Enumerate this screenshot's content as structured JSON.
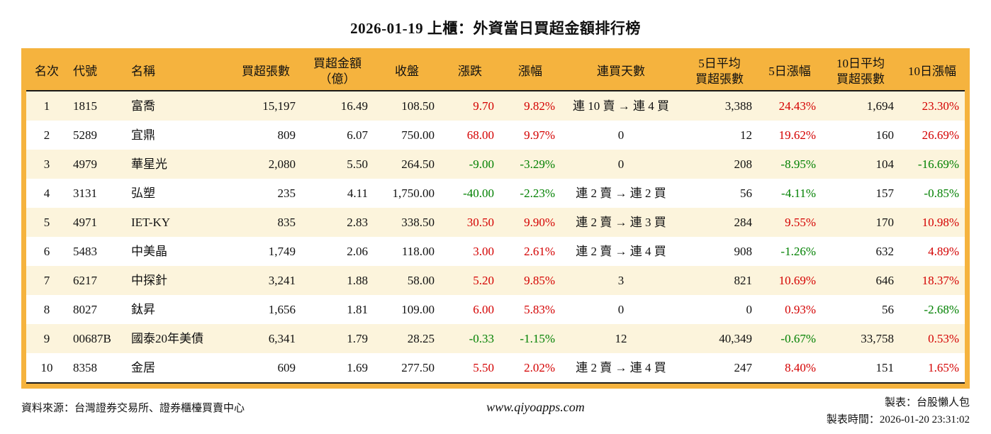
{
  "title": "2026-01-19 上櫃：外資當日買超金額排行榜",
  "colors": {
    "accent": "#F5B33E",
    "row_alt_bg": "#FCF4DC",
    "up_red": "#D40000",
    "down_green": "#008000"
  },
  "table": {
    "headers": [
      "名次",
      "代號",
      "名稱",
      "買超張數",
      "買超金額\n（億）",
      "收盤",
      "漲跌",
      "漲幅",
      "連買天數",
      "5日平均\n買超張數",
      "5日漲幅",
      "10日平均\n買超張數",
      "10日漲幅"
    ],
    "header_align": [
      "center",
      "left",
      "left",
      "center",
      "center",
      "center",
      "center",
      "center",
      "center",
      "center",
      "center",
      "center",
      "center"
    ],
    "cell_align": [
      "center",
      "left",
      "left",
      "right",
      "right",
      "right",
      "right",
      "right",
      "center",
      "right",
      "right",
      "right",
      "right"
    ],
    "colored_columns": [
      6,
      7,
      10,
      12
    ],
    "rows": [
      [
        "1",
        "1815",
        "富喬",
        "15,197",
        "16.49",
        "108.50",
        "9.70",
        "9.82%",
        "連 10 賣 → 連 4 買",
        "3,388",
        "24.43%",
        "1,694",
        "23.30%"
      ],
      [
        "2",
        "5289",
        "宜鼎",
        "809",
        "6.07",
        "750.00",
        "68.00",
        "9.97%",
        "0",
        "12",
        "19.62%",
        "160",
        "26.69%"
      ],
      [
        "3",
        "4979",
        "華星光",
        "2,080",
        "5.50",
        "264.50",
        "-9.00",
        "-3.29%",
        "0",
        "208",
        "-8.95%",
        "104",
        "-16.69%"
      ],
      [
        "4",
        "3131",
        "弘塑",
        "235",
        "4.11",
        "1,750.00",
        "-40.00",
        "-2.23%",
        "連 2 賣 → 連 2 買",
        "56",
        "-4.11%",
        "157",
        "-0.85%"
      ],
      [
        "5",
        "4971",
        "IET-KY",
        "835",
        "2.83",
        "338.50",
        "30.50",
        "9.90%",
        "連 2 賣 → 連 3 買",
        "284",
        "9.55%",
        "170",
        "10.98%"
      ],
      [
        "6",
        "5483",
        "中美晶",
        "1,749",
        "2.06",
        "118.00",
        "3.00",
        "2.61%",
        "連 2 賣 → 連 4 買",
        "908",
        "-1.26%",
        "632",
        "4.89%"
      ],
      [
        "7",
        "6217",
        "中探針",
        "3,241",
        "1.88",
        "58.00",
        "5.20",
        "9.85%",
        "3",
        "821",
        "10.69%",
        "646",
        "18.37%"
      ],
      [
        "8",
        "8027",
        "鈦昇",
        "1,656",
        "1.81",
        "109.00",
        "6.00",
        "5.83%",
        "0",
        "0",
        "0.93%",
        "56",
        "-2.68%"
      ],
      [
        "9",
        "00687B",
        "國泰20年美債",
        "6,341",
        "1.79",
        "28.25",
        "-0.33",
        "-1.15%",
        "12",
        "40,349",
        "-0.67%",
        "33,758",
        "0.53%"
      ],
      [
        "10",
        "8358",
        "金居",
        "609",
        "1.69",
        "277.50",
        "5.50",
        "2.02%",
        "連 2 賣 → 連 4 買",
        "247",
        "8.40%",
        "151",
        "1.65%"
      ]
    ]
  },
  "footer": {
    "source": "資料來源：台灣證券交易所、證券櫃檯買賣中心",
    "website": "www.qiyoapps.com",
    "made_by": "製表：台股懶人包",
    "made_time": "製表時間：2026-01-20 23:31:02"
  }
}
